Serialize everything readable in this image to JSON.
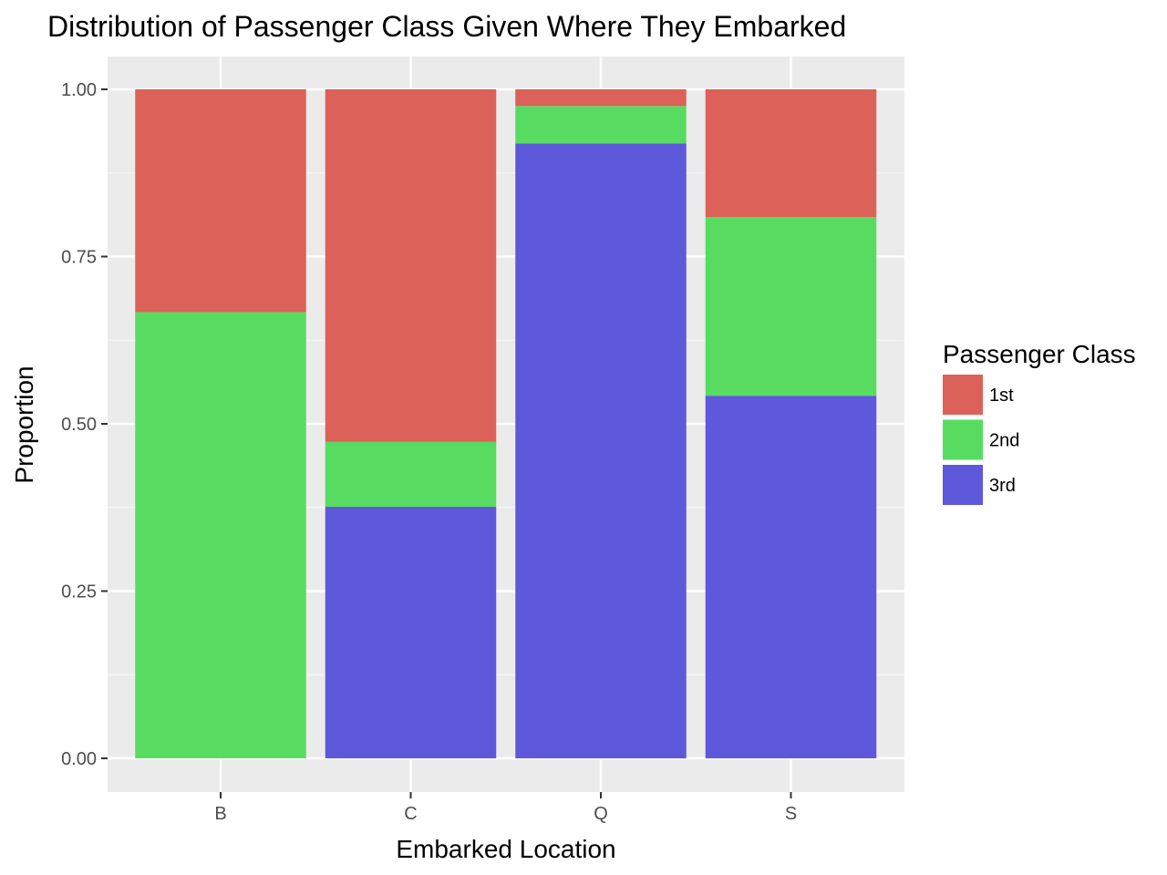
{
  "chart_data": {
    "type": "bar",
    "stacked": true,
    "title": "Distribution of Passenger Class Given Where They Embarked",
    "xlabel": "Embarked Location",
    "ylabel": "Proportion",
    "categories": [
      "B",
      "C",
      "Q",
      "S"
    ],
    "ylim": [
      0,
      1
    ],
    "yticks": [
      0.0,
      0.25,
      0.5,
      0.75,
      1.0
    ],
    "ytick_labels": [
      "0.00",
      "0.25",
      "0.50",
      "0.75",
      "1.00"
    ],
    "grid": true,
    "legend_position": "right",
    "legend_title": "Passenger Class",
    "series": [
      {
        "name": "3rd",
        "color": "#5E58DB",
        "values": [
          0.0,
          0.376,
          0.919,
          0.542
        ]
      },
      {
        "name": "2nd",
        "color": "#57DC61",
        "values": [
          0.667,
          0.097,
          0.056,
          0.267
        ]
      },
      {
        "name": "1st",
        "color": "#DC6158",
        "values": [
          0.333,
          0.527,
          0.025,
          0.191
        ]
      }
    ],
    "legend_order": [
      "1st",
      "2nd",
      "3rd"
    ]
  },
  "colors": {
    "panel_background": "#EBEBEB",
    "grid_major": "#FFFFFF",
    "grid_minor": "#F5F5F5"
  }
}
